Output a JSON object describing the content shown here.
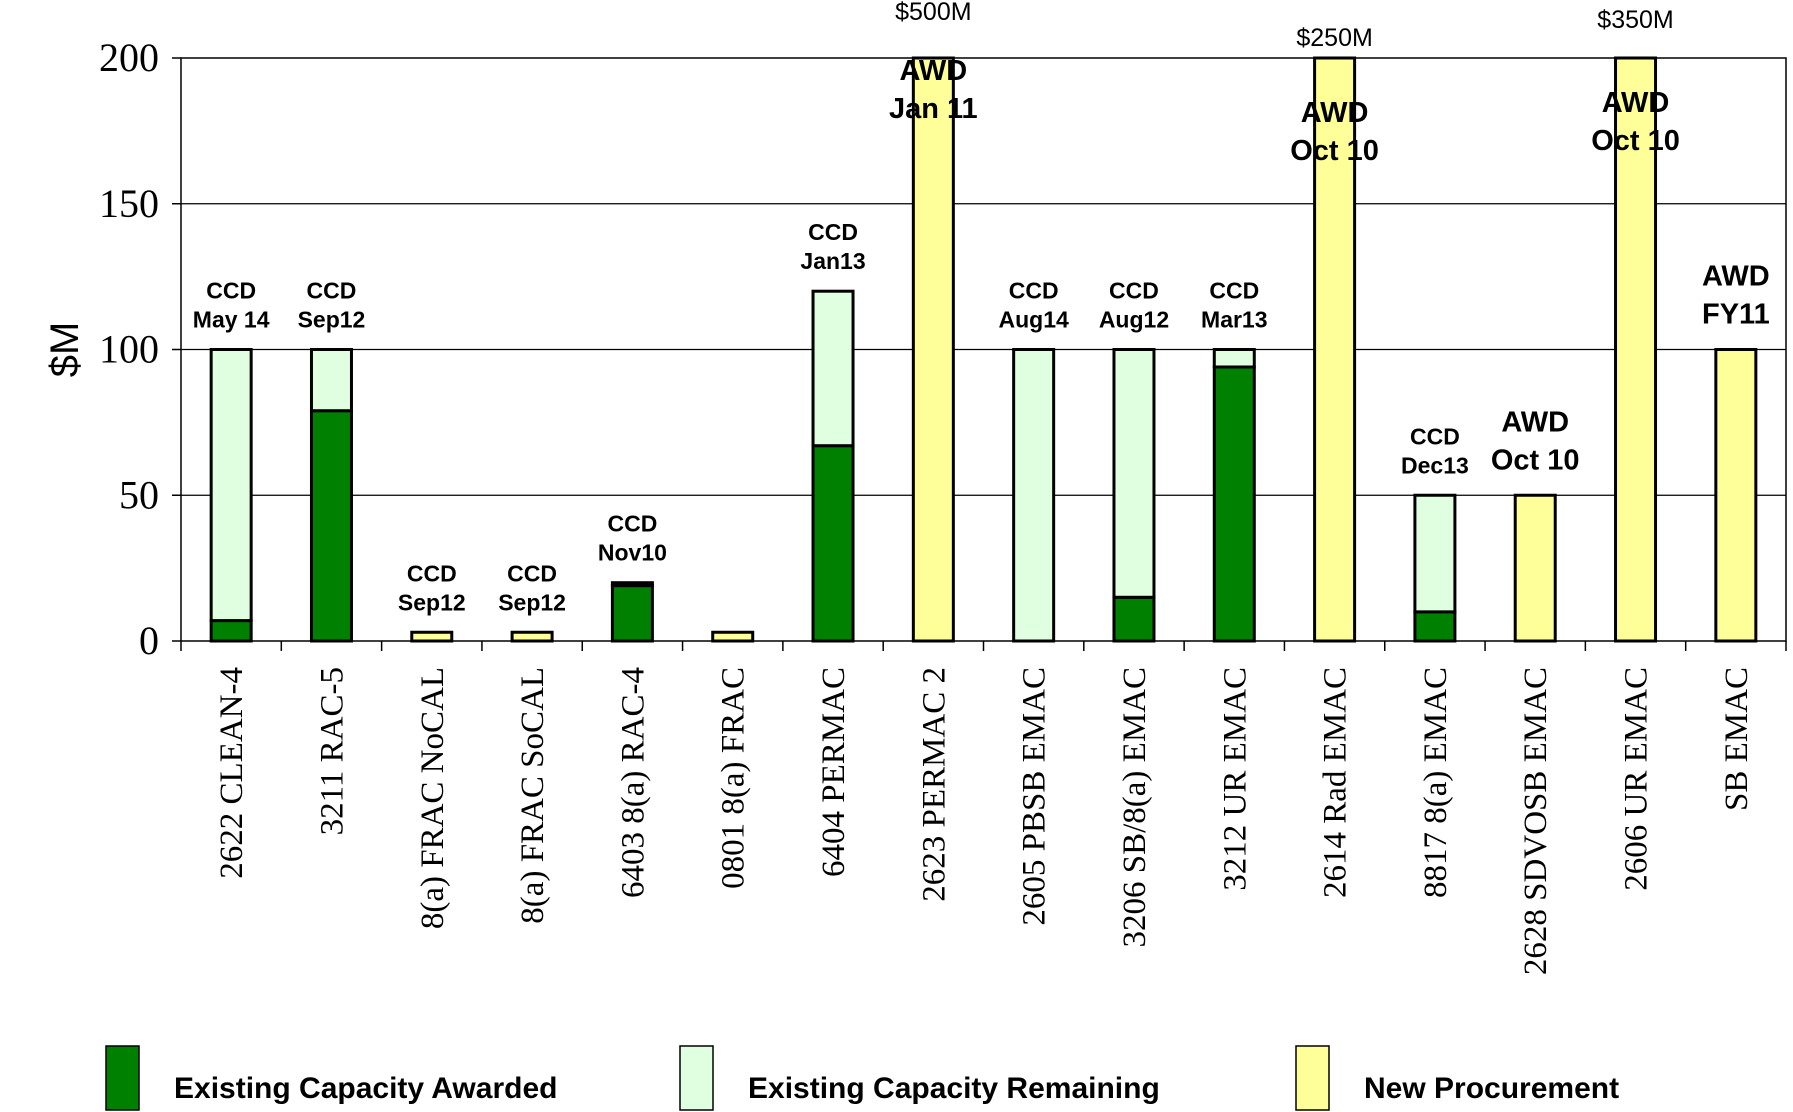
{
  "chart_data": {
    "type": "bar",
    "stacked": true,
    "ylabel": "$M",
    "ylim": [
      0,
      200
    ],
    "yticks": [
      0,
      50,
      100,
      150,
      200
    ],
    "grid": true,
    "legend_position": "bottom",
    "categories": [
      "2622 CLEAN-4",
      "3211 RAC-5",
      "8(a) FRAC NoCAL",
      "8(a) FRAC SoCAL",
      "6403 8(a) RAC-4",
      "0801 8(a) FRAC",
      "6404 PERMAC",
      "2623 PERMAC 2",
      "2605 PBSB EMAC",
      "3206 SB/8(a) EMAC",
      "3212 UR EMAC",
      "2614 Rad EMAC",
      "8817 8(a) EMAC",
      "2628 SDVOSB EMAC",
      "2606 UR EMAC",
      "SB EMAC"
    ],
    "series": [
      {
        "name": "Existing Capacity Awarded",
        "color": "#008000",
        "values": [
          7,
          79,
          0,
          0,
          19,
          0,
          67,
          0,
          0,
          15,
          94,
          0,
          10,
          0,
          0,
          0
        ]
      },
      {
        "name": "Existing Capacity Remaining",
        "color": "#e0ffe0",
        "values": [
          93,
          21,
          0,
          0,
          1,
          0,
          53,
          0,
          100,
          85,
          6,
          0,
          40,
          0,
          0,
          0
        ]
      },
      {
        "name": "New Procurement",
        "color": "#ffff99",
        "values": [
          0,
          0,
          3,
          3,
          0,
          3,
          0,
          200,
          0,
          0,
          0,
          200,
          0,
          50,
          200,
          100
        ]
      }
    ],
    "annotations": [
      {
        "category": "2622 CLEAN-4",
        "lines": [
          "CCD",
          "May 14"
        ],
        "style": "small"
      },
      {
        "category": "3211 RAC-5",
        "lines": [
          "CCD",
          "Sep12"
        ],
        "style": "small"
      },
      {
        "category": "8(a) FRAC NoCAL",
        "lines": [
          "CCD",
          "Sep12"
        ],
        "style": "small"
      },
      {
        "category": "8(a) FRAC SoCAL",
        "lines": [
          "CCD",
          "Sep12"
        ],
        "style": "small"
      },
      {
        "category": "6403 8(a) RAC-4",
        "lines": [
          "CCD",
          "Nov10"
        ],
        "style": "small"
      },
      {
        "category": "6404 PERMAC",
        "lines": [
          "CCD",
          "Jan13"
        ],
        "style": "small"
      },
      {
        "category": "2623 PERMAC 2",
        "lines": [
          "AWD",
          "Jan 11"
        ],
        "style": "big"
      },
      {
        "category": "2605 PBSB EMAC",
        "lines": [
          "CCD",
          "Aug14"
        ],
        "style": "small"
      },
      {
        "category": "3206 SB/8(a) EMAC",
        "lines": [
          "CCD",
          "Aug12"
        ],
        "style": "small"
      },
      {
        "category": "3212 UR EMAC",
        "lines": [
          "CCD",
          "Mar13"
        ],
        "style": "small"
      },
      {
        "category": "2614 Rad EMAC",
        "lines": [
          "AWD",
          "Oct 10"
        ],
        "style": "big"
      },
      {
        "category": "8817 8(a) EMAC",
        "lines": [
          "CCD",
          "Dec13"
        ],
        "style": "small"
      },
      {
        "category": "2628 SDVOSB EMAC",
        "lines": [
          "AWD",
          "Oct 10"
        ],
        "style": "big"
      },
      {
        "category": "2606 UR EMAC",
        "lines": [
          "AWD",
          "Oct 10"
        ],
        "style": "big"
      },
      {
        "category": "SB EMAC",
        "lines": [
          "AWD",
          "FY11"
        ],
        "style": "big"
      }
    ],
    "overflow_labels": [
      {
        "category": "2623 PERMAC 2",
        "text": "$500M"
      },
      {
        "category": "2614 Rad EMAC",
        "text": "$250M"
      },
      {
        "category": "2606 UR EMAC",
        "text": "$350M"
      }
    ]
  }
}
